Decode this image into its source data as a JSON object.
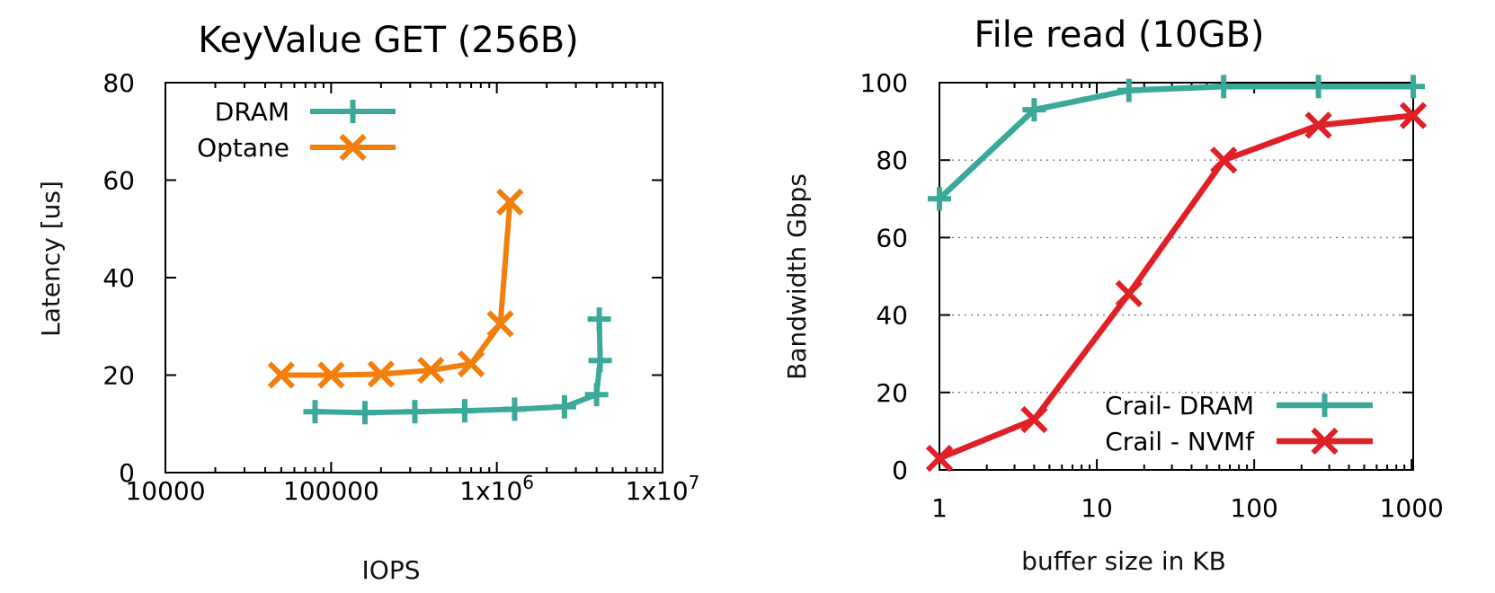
{
  "chart_data": [
    {
      "type": "line",
      "title": "KeyValue GET (256B)",
      "xlabel": "IOPS",
      "ylabel": "Latency [us]",
      "xscale": "log",
      "xlim": [
        10000,
        10000000
      ],
      "ylim": [
        0,
        80
      ],
      "xticks": [
        10000,
        100000,
        1000000,
        10000000
      ],
      "xtick_labels": [
        "10000",
        "100000",
        "1x10",
        "1x10"
      ],
      "xtick_exponents": [
        "",
        "",
        "6",
        "7"
      ],
      "yticks": [
        0,
        20,
        40,
        60,
        80
      ],
      "grid": false,
      "legend_position": "top-left",
      "series": [
        {
          "name": "DRAM",
          "color": "#3aa99a",
          "marker": "plus",
          "points": [
            [
              80000,
              12.5
            ],
            [
              160000,
              12.3
            ],
            [
              320000,
              12.5
            ],
            [
              640000,
              12.7
            ],
            [
              1280000,
              13
            ],
            [
              2560000,
              13.5
            ],
            [
              4000000,
              16
            ],
            [
              4200000,
              23
            ],
            [
              4150000,
              31.5
            ]
          ]
        },
        {
          "name": "Optane",
          "color": "#f27f0c",
          "marker": "cross",
          "points": [
            [
              50000,
              20
            ],
            [
              100000,
              20
            ],
            [
              200000,
              20.2
            ],
            [
              400000,
              21
            ],
            [
              700000,
              22.3
            ],
            [
              1050000,
              30.5
            ],
            [
              1200000,
              55.5
            ]
          ]
        }
      ]
    },
    {
      "type": "line",
      "title": "File read (10GB)",
      "xlabel": "buffer size in KB",
      "ylabel": "Bandwidth Gbps",
      "xscale": "log",
      "xlim": [
        1,
        1024
      ],
      "ylim": [
        0,
        100
      ],
      "xticks": [
        1,
        10,
        100,
        1000
      ],
      "xtick_labels": [
        "1",
        "10",
        "100",
        "1000"
      ],
      "yticks": [
        0,
        20,
        40,
        60,
        80,
        100
      ],
      "grid": true,
      "legend_position": "bottom-right",
      "series": [
        {
          "name": "Crail- DRAM",
          "color": "#3aa99a",
          "marker": "plus",
          "points": [
            [
              1,
              70
            ],
            [
              4,
              93
            ],
            [
              16,
              98
            ],
            [
              64,
              99
            ],
            [
              256,
              99
            ],
            [
              1024,
              99
            ]
          ]
        },
        {
          "name": "Crail - NVMf",
          "color": "#e01f26",
          "marker": "cross",
          "points": [
            [
              1,
              3
            ],
            [
              4,
              13
            ],
            [
              16,
              45.5
            ],
            [
              64,
              80
            ],
            [
              256,
              89
            ],
            [
              1024,
              91.5
            ]
          ]
        }
      ]
    }
  ]
}
